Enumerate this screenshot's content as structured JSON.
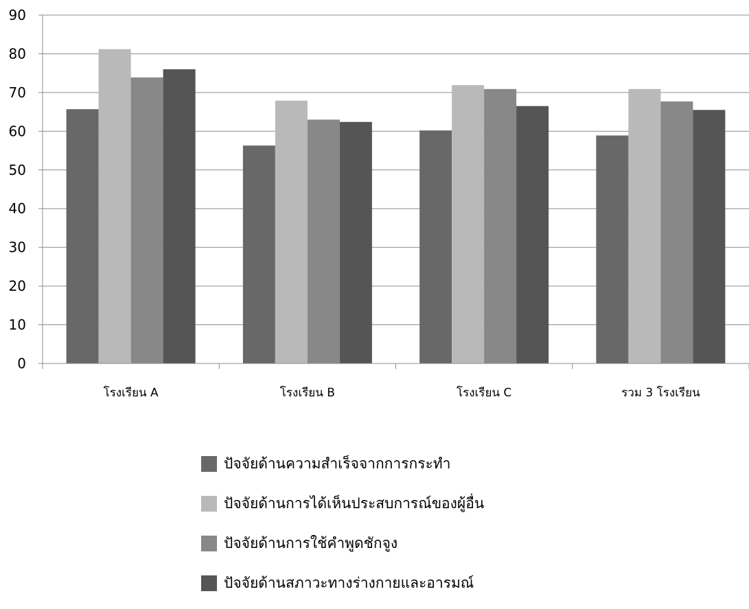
{
  "chart_data": {
    "type": "bar",
    "categories": [
      "โรงเรียน A",
      "โรงเรียน B",
      "โรงเรียน C",
      "รวม 3 โรงเรียน"
    ],
    "series": [
      {
        "name": "ปัจจัยด้านความสำเร็จจากการกระทำ",
        "color": "#686868",
        "values": [
          65.7,
          56.3,
          60.2,
          58.9
        ]
      },
      {
        "name": "ปัจจัยด้านการได้เห็นประสบการณ์ของผู้อื่น",
        "color": "#b9b9b9",
        "values": [
          81.2,
          67.9,
          71.9,
          70.9
        ]
      },
      {
        "name": "ปัจจัยด้านการใช้คำพูดชักจูง",
        "color": "#888888",
        "values": [
          73.9,
          63.0,
          70.9,
          67.7
        ]
      },
      {
        "name": "ปัจจัยด้านสภาวะทางร่างกายและอารมณ์",
        "color": "#555555",
        "values": [
          76.0,
          62.4,
          66.5,
          65.5
        ]
      }
    ],
    "ylim": [
      0,
      90
    ],
    "yticks": [
      0,
      10,
      20,
      30,
      40,
      50,
      60,
      70,
      80,
      90
    ],
    "grid": true,
    "legend_position": "bottom",
    "title": "",
    "xlabel": "",
    "ylabel": ""
  }
}
